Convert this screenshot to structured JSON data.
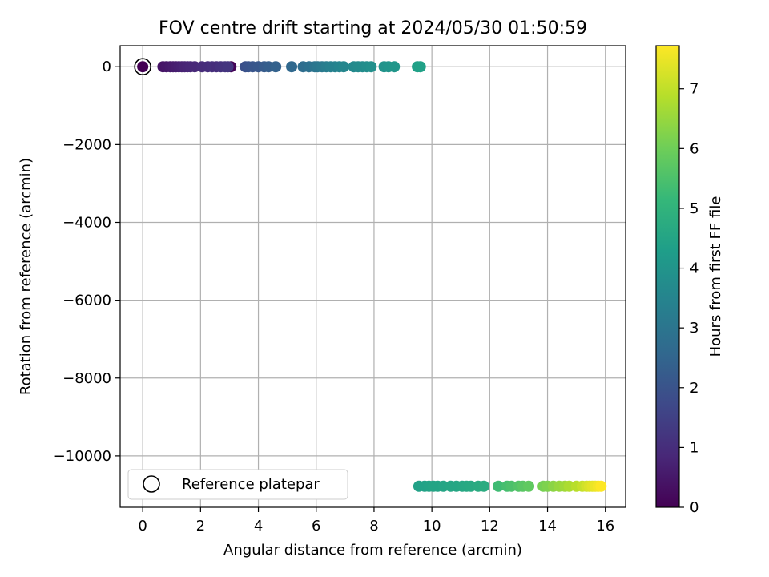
{
  "chart_data": {
    "type": "scatter",
    "title": "FOV centre drift starting at 2024/05/30 01:50:59",
    "xlabel": "Angular distance from reference (arcmin)",
    "ylabel": "Rotation from reference (arcmin)",
    "xlim": [
      -0.78,
      16.7
    ],
    "ylim": [
      -11320,
      540
    ],
    "xticks": [
      0,
      2,
      4,
      6,
      8,
      10,
      12,
      14,
      16
    ],
    "xtick_labels": [
      "0",
      "2",
      "4",
      "6",
      "8",
      "10",
      "12",
      "14",
      "16"
    ],
    "yticks": [
      0,
      -2000,
      -4000,
      -6000,
      -8000,
      -10000
    ],
    "ytick_labels": [
      "0",
      "−2000",
      "−4000",
      "−6000",
      "−8000",
      "−10000"
    ],
    "grid": true,
    "legend": {
      "position": "lower-left",
      "entries": [
        "Reference platepar"
      ]
    },
    "colorbar": {
      "label": "Hours from first FF file",
      "min": 0,
      "max": 7.72,
      "ticks": [
        0,
        1,
        2,
        3,
        4,
        5,
        6,
        7
      ],
      "tick_labels": [
        "0",
        "1",
        "2",
        "3",
        "4",
        "5",
        "6",
        "7"
      ],
      "colormap": "viridis",
      "colors": [
        "#440154",
        "#482878",
        "#3e4989",
        "#31688e",
        "#26828e",
        "#1f9e89",
        "#35b779",
        "#6ece58",
        "#b5de2b",
        "#fde725"
      ]
    },
    "reference_point": {
      "x": 0,
      "y": 0,
      "marker": "open-circle"
    },
    "series": [
      {
        "points": [
          [
            0,
            0,
            0.0
          ],
          [
            3.05,
            0,
            0.05
          ],
          [
            0.7,
            0,
            0.42
          ],
          [
            0.82,
            0,
            0.47
          ],
          [
            0.95,
            0,
            0.53
          ],
          [
            1.05,
            0,
            0.58
          ],
          [
            1.15,
            0,
            0.62
          ],
          [
            1.25,
            0,
            0.67
          ],
          [
            1.35,
            0,
            0.71
          ],
          [
            1.45,
            0,
            0.76
          ],
          [
            1.55,
            0,
            0.8
          ],
          [
            1.65,
            0,
            0.84
          ],
          [
            1.8,
            0,
            0.88
          ],
          [
            2.05,
            0,
            0.95
          ],
          [
            2.25,
            0,
            1.0
          ],
          [
            2.4,
            0,
            1.05
          ],
          [
            2.55,
            0,
            1.0
          ],
          [
            2.7,
            0,
            1.1
          ],
          [
            2.85,
            0,
            1.15
          ],
          [
            2.95,
            0,
            1.2
          ],
          [
            3.55,
            0,
            1.9
          ],
          [
            3.65,
            0,
            2.0
          ],
          [
            3.8,
            0,
            2.05
          ],
          [
            4.0,
            0,
            2.1
          ],
          [
            4.2,
            0,
            2.2
          ],
          [
            4.35,
            0,
            2.3
          ],
          [
            4.6,
            0,
            2.4
          ],
          [
            5.15,
            0,
            2.6
          ],
          [
            5.55,
            0,
            2.75
          ],
          [
            5.75,
            0,
            2.85
          ],
          [
            5.95,
            0,
            2.95
          ],
          [
            6.05,
            0,
            3.05
          ],
          [
            6.2,
            0,
            3.15
          ],
          [
            6.35,
            0,
            3.25
          ],
          [
            6.5,
            0,
            3.35
          ],
          [
            6.65,
            0,
            3.4
          ],
          [
            6.8,
            0,
            3.5
          ],
          [
            6.95,
            0,
            3.55
          ],
          [
            7.3,
            0,
            3.65
          ],
          [
            7.45,
            0,
            3.7
          ],
          [
            7.6,
            0,
            3.75
          ],
          [
            7.75,
            0,
            3.8
          ],
          [
            7.9,
            0,
            3.85
          ],
          [
            8.35,
            0,
            3.95
          ],
          [
            8.5,
            0,
            4.0
          ],
          [
            8.7,
            0,
            4.05
          ],
          [
            9.5,
            0,
            4.35
          ],
          [
            9.6,
            0,
            4.38
          ],
          [
            9.55,
            -10780,
            4.4
          ],
          [
            9.75,
            -10780,
            4.42
          ],
          [
            9.9,
            -10780,
            4.45
          ],
          [
            10.05,
            -10780,
            4.48
          ],
          [
            10.2,
            -10780,
            4.5
          ],
          [
            10.4,
            -10780,
            4.52
          ],
          [
            10.65,
            -10780,
            4.55
          ],
          [
            10.85,
            -10780,
            4.58
          ],
          [
            11.05,
            -10780,
            4.6
          ],
          [
            11.2,
            -10780,
            4.62
          ],
          [
            11.35,
            -10780,
            4.65
          ],
          [
            11.6,
            -10780,
            4.7
          ],
          [
            11.8,
            -10780,
            4.75
          ],
          [
            12.3,
            -10780,
            5.3
          ],
          [
            12.6,
            -10780,
            5.4
          ],
          [
            12.75,
            -10780,
            5.5
          ],
          [
            13.0,
            -10780,
            5.6
          ],
          [
            13.15,
            -10780,
            5.7
          ],
          [
            13.35,
            -10780,
            5.8
          ],
          [
            13.85,
            -10780,
            6.1
          ],
          [
            14.0,
            -10780,
            6.2
          ],
          [
            14.2,
            -10780,
            6.35
          ],
          [
            14.4,
            -10780,
            6.5
          ],
          [
            14.6,
            -10780,
            6.6
          ],
          [
            14.75,
            -10780,
            6.75
          ],
          [
            15.0,
            -10780,
            6.9
          ],
          [
            15.2,
            -10780,
            7.05
          ],
          [
            15.35,
            -10780,
            7.2
          ],
          [
            15.45,
            -10780,
            7.3
          ],
          [
            15.55,
            -10780,
            7.4
          ],
          [
            15.65,
            -10780,
            7.5
          ],
          [
            15.75,
            -10780,
            7.6
          ],
          [
            15.85,
            -10780,
            7.72
          ]
        ]
      }
    ]
  }
}
